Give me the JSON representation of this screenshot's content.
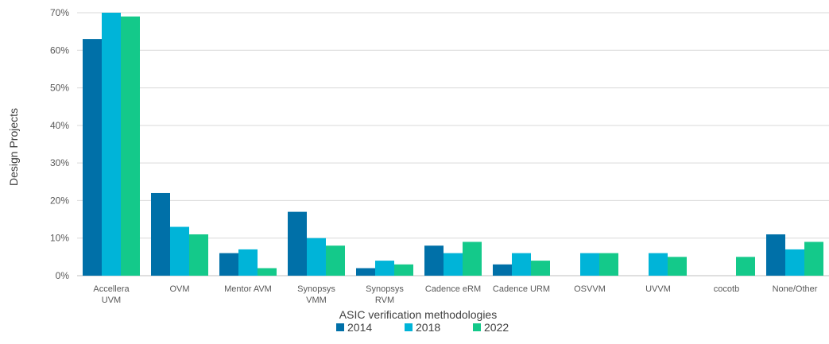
{
  "chart_data": {
    "type": "bar",
    "title": "",
    "xlabel": "ASIC verification methodologies",
    "ylabel": "Design Projects",
    "ylim": [
      0,
      70
    ],
    "yticks": [
      "0%",
      "10%",
      "20%",
      "30%",
      "40%",
      "50%",
      "60%",
      "70%"
    ],
    "grid": true,
    "legend_position": "bottom",
    "categories": [
      [
        "Accellera",
        "UVM"
      ],
      [
        "OVM"
      ],
      [
        "Mentor AVM"
      ],
      [
        "Synopsys",
        "VMM"
      ],
      [
        "Synopsys",
        "RVM"
      ],
      [
        "Cadence eRM"
      ],
      [
        "Cadence URM"
      ],
      [
        "OSVVM"
      ],
      [
        "UVVM"
      ],
      [
        "cocotb"
      ],
      [
        "None/Other"
      ]
    ],
    "series": [
      {
        "name": "2014",
        "color": "#0070a8",
        "values": [
          63,
          22,
          6,
          17,
          2,
          8,
          3,
          0,
          0,
          0,
          11
        ]
      },
      {
        "name": "2018",
        "color": "#00b4d8",
        "values": [
          70,
          13,
          7,
          10,
          4,
          6,
          6,
          6,
          6,
          0,
          7
        ]
      },
      {
        "name": "2022",
        "color": "#14c98a",
        "values": [
          69,
          11,
          2,
          8,
          3,
          9,
          4,
          6,
          5,
          5,
          9
        ]
      }
    ]
  }
}
